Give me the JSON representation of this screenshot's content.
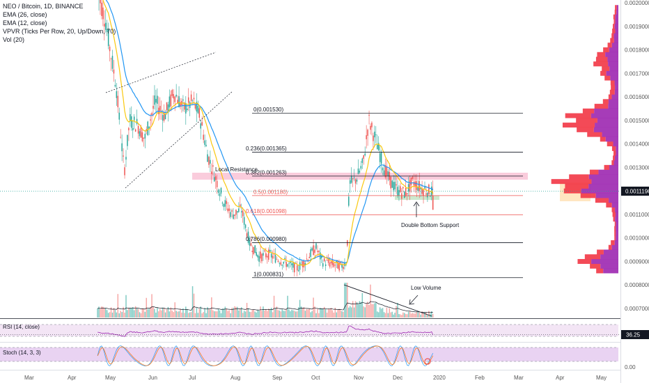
{
  "legend": {
    "title": "NEO / Bitcoin, 1D, BINANCE",
    "ema26": "EMA (26, close)",
    "ema12": "EMA (12, close)",
    "vpvr": "VPVR (Ticks Per Row, 20, Up/Down, 70)",
    "vol": "Vol (20)"
  },
  "colors": {
    "up": "#26a69a",
    "down": "#ef5350",
    "ema26": "#2196f3",
    "ema12": "#f9c80e",
    "vpvr_up": "#9c27b0",
    "vpvr_down": "#f23645",
    "fib_main": "#131722",
    "fib_red": "#ef5350",
    "rsi_fill": "#e1bee7",
    "stoch_fill": "#e1bee7",
    "price_badge": "#131722"
  },
  "price_axis": {
    "ticks": [
      "0.0020000",
      "0.0019000",
      "0.0018000",
      "0.0017000",
      "0.0016000",
      "0.0015000",
      "0.0014000",
      "0.0013000",
      "0.0012000",
      "0.0011000",
      "0.0010000",
      "0.0009000",
      "0.0008000",
      "0.0007000"
    ],
    "current": "0.0011196"
  },
  "rsi": {
    "label": "RSI (14, close)",
    "value": "36.25"
  },
  "stoch": {
    "label": "Stoch (14, 3, 3)",
    "zero": "0.00"
  },
  "time_axis": [
    "Mar",
    "Apr",
    "May",
    "Jun",
    "Jul",
    "Aug",
    "Sep",
    "Oct",
    "Nov",
    "Dec",
    "2020",
    "Feb",
    "Mar",
    "Apr",
    "May"
  ],
  "fib_levels": [
    {
      "label": "0(0.001530)",
      "value": 0.00153,
      "color": "main"
    },
    {
      "label": "0.236(0.001365)",
      "value": 0.001365,
      "color": "main"
    },
    {
      "label": "0.382(0.001263)",
      "value": 0.001263,
      "color": "main"
    },
    {
      "label": "0.5(0.001180)",
      "value": 0.00118,
      "color": "red"
    },
    {
      "label": "0.618(0.001098)",
      "value": 0.001098,
      "color": "red"
    },
    {
      "label": "0.786(0.000980)",
      "value": 0.00098,
      "color": "main"
    },
    {
      "label": "1(0.000831)",
      "value": 0.000831,
      "color": "main"
    }
  ],
  "annotations": {
    "local_resistance": "Local Resistance",
    "double_bottom": "Double Bottom Support",
    "low_volume": "Low Volume"
  },
  "chart_data": {
    "type": "candlestick",
    "symbol": "NEO / Bitcoin, 1D, BINANCE",
    "indicators": [
      "EMA (26, close)",
      "EMA (12, close)",
      "VPVR (Ticks Per Row, 20, Up/Down, 70)",
      "Vol (20)",
      "RSI (14, close)",
      "Stoch (14, 3, 3)"
    ],
    "ylim": [
      0.00063,
      0.00201
    ],
    "price_path": [
      [
        "Apr 20",
        0.00205
      ],
      [
        "Apr 26",
        0.00192
      ],
      [
        "May 1",
        0.00182
      ],
      [
        "May 6",
        0.00165
      ],
      [
        "May 12",
        0.00128
      ],
      [
        "May 16",
        0.0015
      ],
      [
        "May 22",
        0.00148
      ],
      [
        "May 27",
        0.00142
      ],
      [
        "Jun 3",
        0.00158
      ],
      [
        "Jun 10",
        0.00152
      ],
      [
        "Jun 17",
        0.00162
      ],
      [
        "Jun 24",
        0.00155
      ],
      [
        "Jul 1",
        0.00158
      ],
      [
        "Jul 6",
        0.00152
      ],
      [
        "Jul 12",
        0.00135
      ],
      [
        "Jul 18",
        0.00125
      ],
      [
        "Jul 24",
        0.00115
      ],
      [
        "Jul 30",
        0.0011
      ],
      [
        "Aug 6",
        0.00112
      ],
      [
        "Aug 12",
        0.00098
      ],
      [
        "Aug 19",
        0.00092
      ],
      [
        "Aug 26",
        0.00093
      ],
      [
        "Sep 2",
        0.00091
      ],
      [
        "Sep 9",
        0.00089
      ],
      [
        "Sep 16",
        0.00087
      ],
      [
        "Sep 22",
        0.0009
      ],
      [
        "Sep 30",
        0.00096
      ],
      [
        "Oct 6",
        0.0009
      ],
      [
        "Oct 13",
        0.00089
      ],
      [
        "Oct 20",
        0.00088
      ],
      [
        "Oct 24",
        0.0009
      ],
      [
        "Oct 26",
        0.00123
      ],
      [
        "Oct 31",
        0.00125
      ],
      [
        "Nov 5",
        0.00132
      ],
      [
        "Nov 9",
        0.0015
      ],
      [
        "Nov 15",
        0.0014
      ],
      [
        "Nov 20",
        0.0013
      ],
      [
        "Nov 26",
        0.00123
      ],
      [
        "Dec 2",
        0.0012
      ],
      [
        "Dec 7",
        0.00119
      ],
      [
        "Dec 13",
        0.00124
      ],
      [
        "Dec 19",
        0.00121
      ],
      [
        "Dec 24",
        0.0012
      ],
      [
        "Dec 28",
        0.001196
      ]
    ],
    "last_price": 0.0011196,
    "fibonacci": {
      "0": 0.00153,
      "0.236": 0.001365,
      "0.382": 0.001263,
      "0.5": 0.00118,
      "0.618": 0.001098,
      "0.786": 0.00098,
      "1": 0.000831
    },
    "rsi_last": 36.25
  }
}
